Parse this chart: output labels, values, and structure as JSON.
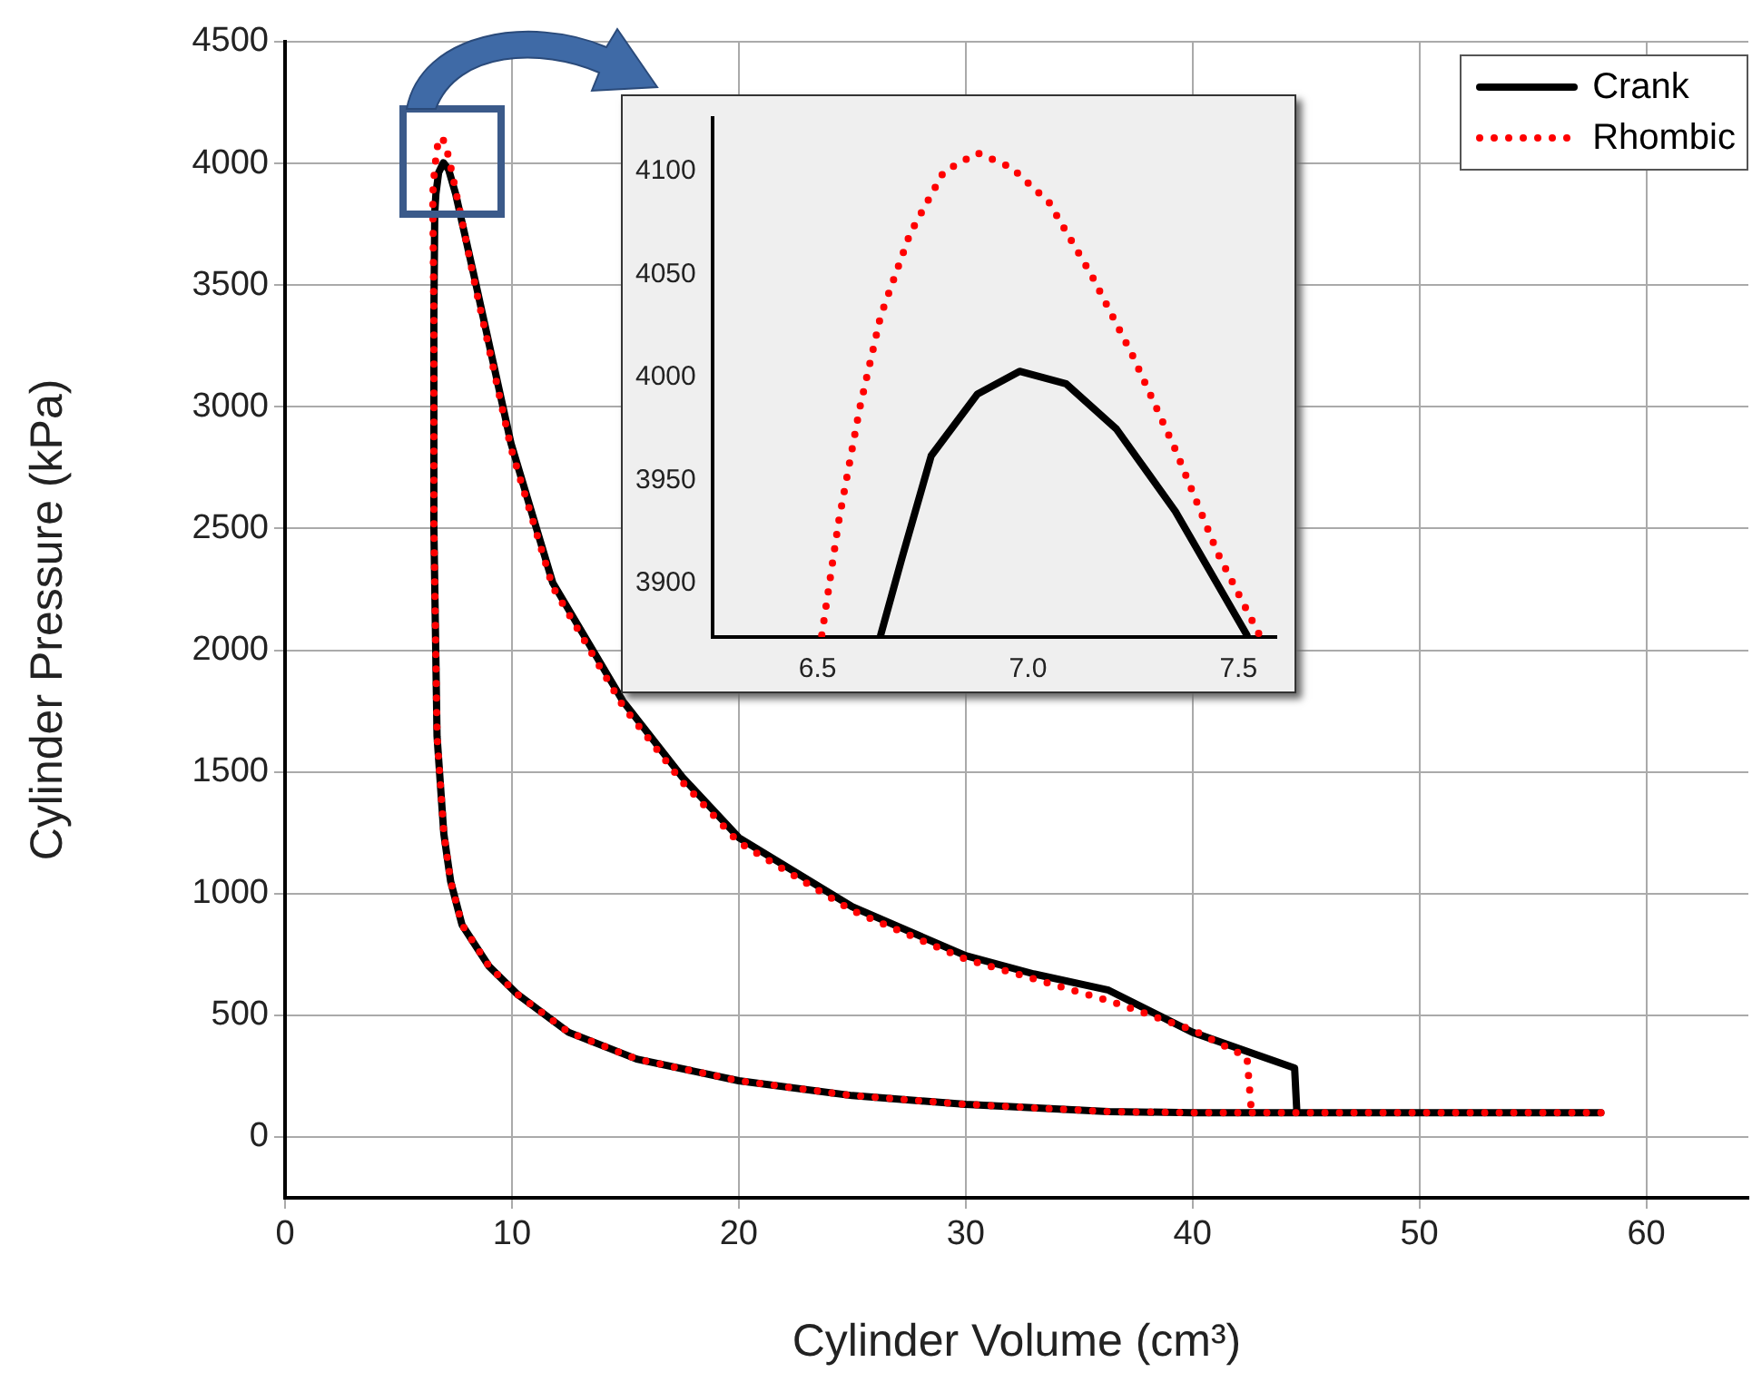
{
  "chart_data": [
    {
      "type": "line",
      "xlabel": "Cylinder Volume (cm³)",
      "ylabel": "Cylinder Pressure (kPa)",
      "xlim": [
        0,
        64.5
      ],
      "ylim": [
        -250,
        4500
      ],
      "xticks": [
        0,
        10,
        20,
        30,
        40,
        50,
        60
      ],
      "yticks": [
        0,
        500,
        1000,
        1500,
        2000,
        2500,
        3000,
        3500,
        4000,
        4500
      ],
      "grid": true,
      "legend": "top right",
      "series": [
        {
          "name": "Crank",
          "color": "#000000",
          "line_style": "solid",
          "x": [
            58,
            50,
            44.6,
            40,
            36.3,
            30,
            25,
            20,
            15.5,
            12.5,
            10.26,
            9,
            7.8,
            7.3,
            7.0,
            6.7,
            6.56,
            6.56,
            6.6,
            6.65,
            6.77,
            6.98,
            7.21,
            7.52,
            8.4,
            9.96,
            11.8,
            14.9,
            17.5,
            20,
            25,
            30,
            33,
            36.3,
            40,
            44.5,
            44.6
          ],
          "values": [
            100,
            100,
            100,
            100,
            104,
            134,
            170,
            231,
            320,
            430,
            585,
            700,
            872,
            1050,
            1245,
            1647,
            2505,
            3370,
            3800,
            3875,
            3962,
            4003,
            3975,
            3875,
            3510,
            2850,
            2277,
            1790,
            1480,
            1230,
            946,
            745,
            670,
            603,
            430,
            283,
            100
          ]
        },
        {
          "name": "Rhombic",
          "color": "#ff0000",
          "line_style": "dotted",
          "x": [
            58,
            50,
            44.6,
            42.6,
            40,
            36.3,
            30,
            25,
            20,
            15.5,
            12.5,
            10.26,
            9,
            7.8,
            7.3,
            7.0,
            6.7,
            6.56,
            6.56,
            6.51,
            6.6,
            6.72,
            6.88,
            7.05,
            7.25,
            7.55,
            8.4,
            9.96,
            11.8,
            14.9,
            17.5,
            20,
            25,
            30,
            33,
            36.3,
            40,
            42.4,
            42.6
          ],
          "values": [
            100,
            100,
            100,
            100,
            100,
            104,
            134,
            170,
            231,
            320,
            430,
            585,
            700,
            872,
            1050,
            1245,
            1647,
            2505,
            3370,
            3875,
            3985,
            4070,
            4109,
            4085,
            4010,
            3875,
            3490,
            2830,
            2260,
            1770,
            1460,
            1210,
            930,
            730,
            650,
            560,
            440,
            328,
            100
          ]
        }
      ]
    },
    {
      "type": "line",
      "xlim": [
        6.25,
        7.59
      ],
      "ylim": [
        3874,
        4126
      ],
      "xticks": [
        {
          "value": 6.5,
          "label": "6.5"
        },
        {
          "value": 7,
          "label": "7.0"
        },
        {
          "value": 7.5,
          "label": "7.5"
        }
      ],
      "yticks": [
        3900,
        3950,
        4000,
        4050,
        4100
      ],
      "series": [
        {
          "color": "#000000",
          "line_style": "solid",
          "x": [
            6.65,
            6.7,
            6.77,
            6.88,
            6.98,
            7.09,
            7.21,
            7.35,
            7.52
          ],
          "values": [
            3875,
            3912,
            3962,
            3992,
            4003,
            3997,
            3975,
            3935,
            3875
          ]
        },
        {
          "color": "#ff0000",
          "line_style": "dotted",
          "x": [
            6.51,
            6.55,
            6.6,
            6.65,
            6.72,
            6.8,
            6.88,
            6.96,
            7.05,
            7.15,
            7.25,
            7.35,
            7.45,
            7.55
          ],
          "values": [
            3875,
            3930,
            3985,
            4030,
            4070,
            4100,
            4109,
            4102,
            4085,
            4050,
            4010,
            3965,
            3915,
            3875
          ]
        }
      ]
    }
  ]
}
